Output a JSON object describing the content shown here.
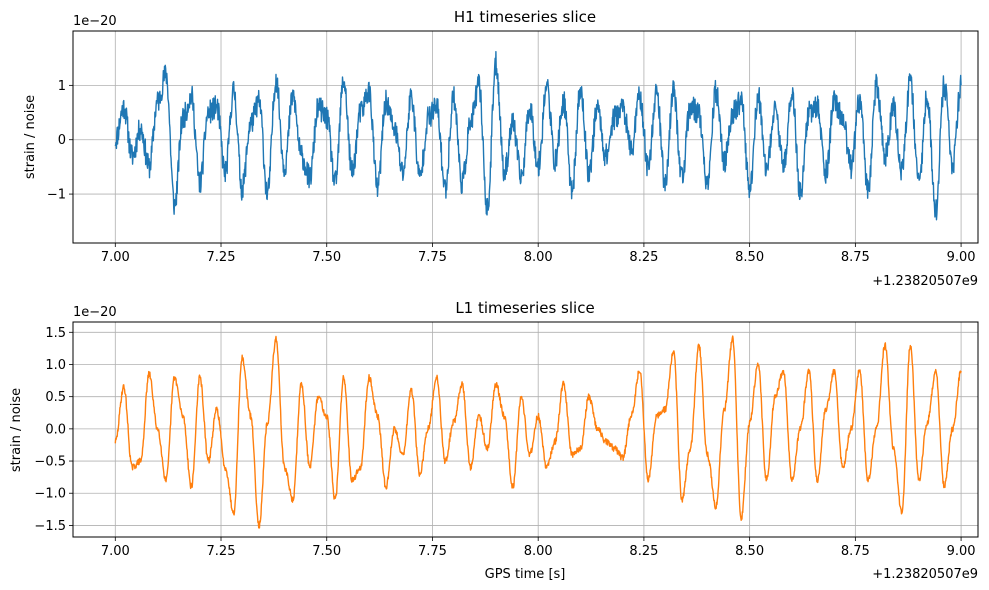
{
  "chart_data": [
    {
      "type": "line",
      "title": "H1 timeseries slice",
      "xlabel": "",
      "ylabel": "strain / noise",
      "y_scale_label": "1e−20",
      "x_offset_label": "+1.23820507e9",
      "xlim": [
        6.9,
        9.04
      ],
      "ylim": [
        -1.9,
        2.0
      ],
      "x_ticks": [
        7.0,
        7.25,
        7.5,
        7.75,
        8.0,
        8.25,
        8.5,
        8.75,
        9.0
      ],
      "x_tick_labels": [
        "7.00",
        "7.25",
        "7.50",
        "7.75",
        "8.00",
        "8.25",
        "8.50",
        "8.75",
        "9.00"
      ],
      "y_ticks": [
        -1,
        0,
        1
      ],
      "y_tick_labels": [
        "−1",
        "0",
        "1"
      ],
      "grid": true,
      "color": "#1f77b4",
      "noise_amplitude": 0.22,
      "series": [
        {
          "x": [
            7.0,
            7.02,
            7.04,
            7.06,
            7.08,
            7.1,
            7.12,
            7.14,
            7.16,
            7.18,
            7.2,
            7.22,
            7.24,
            7.26,
            7.28,
            7.3,
            7.32,
            7.34,
            7.36,
            7.38,
            7.4,
            7.42,
            7.44,
            7.46,
            7.48,
            7.5,
            7.52,
            7.54,
            7.56,
            7.58,
            7.6,
            7.62,
            7.64,
            7.66,
            7.68,
            7.7,
            7.72,
            7.74,
            7.76,
            7.78,
            7.8,
            7.82,
            7.84,
            7.86,
            7.88,
            7.9,
            7.92,
            7.94,
            7.96,
            7.98,
            8.0,
            8.02,
            8.04,
            8.06,
            8.08,
            8.1,
            8.12,
            8.14,
            8.16,
            8.18,
            8.2,
            8.22,
            8.24,
            8.26,
            8.28,
            8.3,
            8.32,
            8.34,
            8.36,
            8.38,
            8.4,
            8.42,
            8.44,
            8.46,
            8.48,
            8.5,
            8.52,
            8.54,
            8.56,
            8.58,
            8.6,
            8.62,
            8.64,
            8.66,
            8.68,
            8.7,
            8.72,
            8.74,
            8.76,
            8.78,
            8.8,
            8.82,
            8.84,
            8.86,
            8.88,
            8.9,
            8.92,
            8.94,
            8.96,
            8.98,
            9.0
          ],
          "y": [
            0.0,
            0.6,
            -0.3,
            0.2,
            -0.5,
            0.7,
            1.2,
            -1.2,
            0.4,
            0.8,
            -0.8,
            0.5,
            0.6,
            -0.6,
            0.9,
            -0.9,
            0.3,
            0.7,
            -1.0,
            1.1,
            -0.5,
            0.8,
            -0.3,
            -0.7,
            0.6,
            0.4,
            -0.8,
            1.1,
            -0.6,
            0.5,
            0.9,
            -0.9,
            0.7,
            0.2,
            -0.6,
            0.8,
            -0.7,
            0.4,
            0.6,
            -0.9,
            0.8,
            -0.8,
            0.3,
            1.0,
            -1.3,
            1.4,
            -0.6,
            0.3,
            -0.7,
            0.6,
            -0.5,
            1.0,
            -0.4,
            0.7,
            -0.9,
            0.9,
            -0.6,
            0.6,
            -0.3,
            0.4,
            0.6,
            -0.2,
            0.8,
            -0.5,
            0.9,
            -0.8,
            0.9,
            -0.7,
            0.6,
            0.5,
            -0.9,
            0.9,
            -0.4,
            0.5,
            0.7,
            -0.9,
            0.8,
            -0.6,
            0.6,
            -0.5,
            0.9,
            -1.0,
            0.5,
            0.6,
            -0.6,
            0.7,
            0.4,
            -0.5,
            0.7,
            -0.9,
            1.0,
            -0.3,
            0.6,
            -0.6,
            1.1,
            -0.8,
            0.8,
            -1.3,
            1.0,
            -0.5,
            1.0
          ]
        }
      ]
    },
    {
      "type": "line",
      "title": "L1 timeseries slice",
      "xlabel": "GPS time [s]",
      "ylabel": "strain / noise",
      "y_scale_label": "1e−20",
      "x_offset_label": "+1.23820507e9",
      "xlim": [
        6.9,
        9.04
      ],
      "ylim": [
        -1.68,
        1.66
      ],
      "x_ticks": [
        7.0,
        7.25,
        7.5,
        7.75,
        8.0,
        8.25,
        8.5,
        8.75,
        9.0
      ],
      "x_tick_labels": [
        "7.00",
        "7.25",
        "7.50",
        "7.75",
        "8.00",
        "8.25",
        "8.50",
        "8.75",
        "9.00"
      ],
      "y_ticks": [
        -1.5,
        -1.0,
        -0.5,
        0.0,
        0.5,
        1.0,
        1.5
      ],
      "y_tick_labels": [
        "−1.5",
        "−1.0",
        "−0.5",
        "0.0",
        "0.5",
        "1.0",
        "1.5"
      ],
      "grid": true,
      "color": "#ff7f0e",
      "noise_amplitude": 0.05,
      "series": [
        {
          "x": [
            7.0,
            7.02,
            7.04,
            7.06,
            7.08,
            7.1,
            7.12,
            7.14,
            7.16,
            7.18,
            7.2,
            7.22,
            7.24,
            7.26,
            7.28,
            7.3,
            7.32,
            7.34,
            7.36,
            7.38,
            7.4,
            7.42,
            7.44,
            7.46,
            7.48,
            7.5,
            7.52,
            7.54,
            7.56,
            7.58,
            7.6,
            7.62,
            7.64,
            7.66,
            7.68,
            7.7,
            7.72,
            7.74,
            7.76,
            7.78,
            7.8,
            7.82,
            7.84,
            7.86,
            7.88,
            7.9,
            7.92,
            7.94,
            7.96,
            7.98,
            8.0,
            8.02,
            8.04,
            8.06,
            8.08,
            8.1,
            8.12,
            8.14,
            8.16,
            8.18,
            8.2,
            8.22,
            8.24,
            8.26,
            8.28,
            8.3,
            8.32,
            8.34,
            8.36,
            8.38,
            8.4,
            8.42,
            8.44,
            8.46,
            8.48,
            8.5,
            8.52,
            8.54,
            8.56,
            8.58,
            8.6,
            8.62,
            8.64,
            8.66,
            8.68,
            8.7,
            8.72,
            8.74,
            8.76,
            8.78,
            8.8,
            8.82,
            8.84,
            8.86,
            8.88,
            8.9,
            8.92,
            8.94,
            8.96,
            8.98,
            9.0
          ],
          "y": [
            -0.2,
            0.65,
            -0.6,
            -0.5,
            0.85,
            0.0,
            -0.8,
            0.8,
            0.2,
            -0.9,
            0.8,
            -0.5,
            0.3,
            -0.6,
            -1.3,
            1.1,
            0.2,
            -1.5,
            0.1,
            1.4,
            -0.6,
            -1.1,
            0.7,
            -0.6,
            0.5,
            0.2,
            -1.1,
            0.8,
            -0.8,
            -0.6,
            0.8,
            0.2,
            -0.9,
            0.0,
            -0.4,
            0.6,
            -0.7,
            0.0,
            0.8,
            -0.5,
            0.1,
            0.7,
            -0.6,
            0.2,
            -0.3,
            0.7,
            0.2,
            -0.9,
            0.5,
            -0.4,
            0.2,
            -0.6,
            -0.2,
            0.7,
            -0.4,
            -0.3,
            0.5,
            -0.0,
            -0.2,
            -0.3,
            -0.45,
            0.2,
            0.9,
            -0.8,
            0.2,
            0.3,
            1.2,
            -1.1,
            -0.3,
            1.3,
            -0.4,
            -1.2,
            0.3,
            1.4,
            -1.4,
            0.1,
            1.0,
            -0.8,
            0.5,
            0.9,
            -0.8,
            0.0,
            0.9,
            -0.8,
            0.3,
            0.9,
            -0.6,
            0.0,
            0.9,
            -0.8,
            0.0,
            1.3,
            -0.3,
            -1.3,
            1.3,
            -0.8,
            0.1,
            0.9,
            -0.9,
            0.0,
            0.9
          ]
        }
      ]
    }
  ]
}
